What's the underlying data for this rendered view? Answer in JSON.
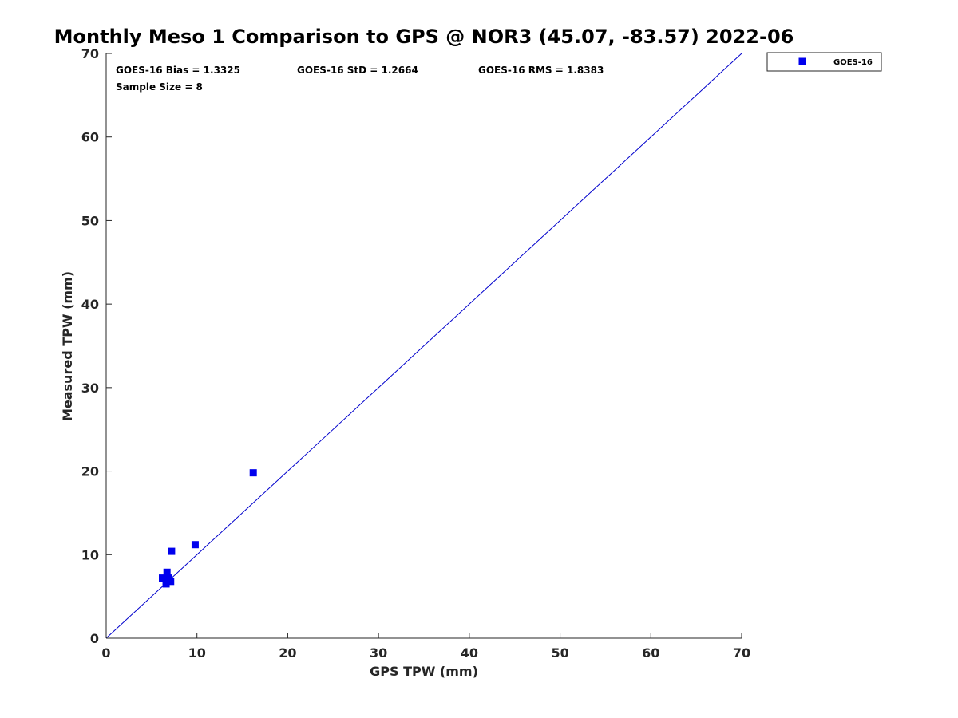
{
  "chart_data": {
    "type": "scatter",
    "title": "Monthly Meso 1 Comparison to GPS @ NOR3 (45.07, -83.57) 2022-06",
    "xlabel": "GPS TPW (mm)",
    "ylabel": "Measured TPW (mm)",
    "xlim": [
      0,
      70
    ],
    "ylim": [
      0,
      70
    ],
    "x_ticks": [
      0,
      10,
      20,
      30,
      40,
      50,
      60,
      70
    ],
    "y_ticks": [
      0,
      10,
      20,
      30,
      40,
      50,
      60,
      70
    ],
    "x_tick_labels": [
      "0",
      "10",
      "20",
      "30",
      "40",
      "50",
      "60",
      "70"
    ],
    "y_tick_labels": [
      "0",
      "10",
      "20",
      "30",
      "40",
      "50",
      "60",
      "70"
    ],
    "grid": false,
    "legend_position": "outside-top-right",
    "reference_line": {
      "x": [
        0,
        70
      ],
      "y": [
        0,
        70
      ],
      "color": "#0000cc"
    },
    "series": [
      {
        "name": "GOES-16",
        "marker": "square",
        "color": "#0000ee",
        "points": [
          {
            "x": 16.2,
            "y": 19.8
          },
          {
            "x": 9.8,
            "y": 11.2
          },
          {
            "x": 7.2,
            "y": 10.4
          },
          {
            "x": 6.7,
            "y": 7.9
          },
          {
            "x": 6.2,
            "y": 7.2
          },
          {
            "x": 6.9,
            "y": 7.2
          },
          {
            "x": 7.1,
            "y": 6.8
          },
          {
            "x": 6.6,
            "y": 6.5
          }
        ]
      }
    ],
    "stats": {
      "bias": "GOES-16 Bias = 1.3325",
      "std": "GOES-16 StD = 1.2664",
      "rms": "GOES-16 RMS = 1.8383",
      "sample_size": "Sample Size = 8"
    },
    "legend": {
      "label": "GOES-16"
    }
  }
}
